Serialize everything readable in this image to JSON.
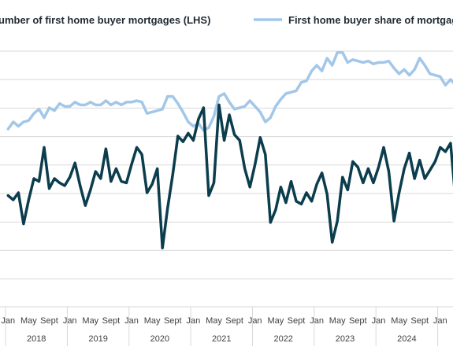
{
  "chart_data": {
    "type": "line",
    "title": "",
    "xlabel": "",
    "ylabel": "",
    "grid": true,
    "legend_position": "top",
    "x_tick_labels": [
      "Jan",
      "May",
      "Sept",
      "Jan",
      "May",
      "Sept",
      "Jan",
      "May",
      "Sept",
      "Jan",
      "May",
      "Sept",
      "Jan",
      "May",
      "Sept",
      "Jan",
      "May",
      "Sept",
      "Jan",
      "May",
      "Sept",
      "Jan"
    ],
    "years": [
      "2018",
      "2019",
      "2020",
      "2021",
      "2022",
      "2023",
      "2024"
    ],
    "series": [
      {
        "name": "Number of first home buyer mortgages (LHS)",
        "legend_visible_text": "umber of first home buyer mortgages (LHS)",
        "color": "#0b3d4d",
        "axis": "left",
        "values": [
          -0.02,
          -0.05,
          0.0,
          -0.22,
          -0.05,
          0.1,
          0.08,
          0.32,
          0.03,
          0.1,
          0.07,
          0.05,
          0.11,
          0.21,
          0.05,
          -0.09,
          0.02,
          0.15,
          0.1,
          0.31,
          0.08,
          0.17,
          0.08,
          0.07,
          0.2,
          0.32,
          0.27,
          0.0,
          0.06,
          0.17,
          -0.39,
          -0.11,
          0.13,
          0.4,
          0.36,
          0.42,
          0.37,
          0.52,
          0.6,
          -0.02,
          0.07,
          0.62,
          0.37,
          0.55,
          0.41,
          0.37,
          0.17,
          0.04,
          0.2,
          0.39,
          0.27,
          -0.21,
          -0.12,
          0.04,
          -0.07,
          0.08,
          -0.06,
          -0.08,
          0.0,
          -0.06,
          0.06,
          0.14,
          -0.01,
          -0.35,
          -0.2,
          0.11,
          0.02,
          0.22,
          0.18,
          0.07,
          0.17,
          0.07,
          0.18,
          0.32,
          0.15,
          -0.2,
          0.0,
          0.17,
          0.28,
          0.1,
          0.23,
          0.1,
          0.16,
          0.22,
          0.32,
          0.29,
          0.35,
          -0.06,
          0.0
        ]
      },
      {
        "name": "First home buyer share of mortgages",
        "legend_visible_text": "First home buyer share of mortgag",
        "color": "#a3c7e8",
        "axis": "right",
        "values": [
          0.45,
          0.5,
          0.47,
          0.5,
          0.51,
          0.56,
          0.59,
          0.53,
          0.6,
          0.58,
          0.63,
          0.61,
          0.61,
          0.64,
          0.62,
          0.62,
          0.64,
          0.62,
          0.62,
          0.65,
          0.62,
          0.64,
          0.62,
          0.64,
          0.64,
          0.65,
          0.64,
          0.56,
          0.57,
          0.58,
          0.59,
          0.68,
          0.68,
          0.63,
          0.57,
          0.5,
          0.47,
          0.49,
          0.44,
          0.46,
          0.54,
          0.68,
          0.7,
          0.64,
          0.59,
          0.6,
          0.61,
          0.65,
          0.61,
          0.57,
          0.5,
          0.53,
          0.61,
          0.66,
          0.7,
          0.71,
          0.72,
          0.78,
          0.79,
          0.86,
          0.9,
          0.86,
          0.95,
          0.9,
          0.99,
          0.99,
          0.92,
          0.94,
          0.93,
          0.92,
          0.93,
          0.91,
          0.92,
          0.92,
          0.93,
          0.88,
          0.84,
          0.87,
          0.83,
          0.87,
          0.95,
          0.9,
          0.84,
          0.83,
          0.82,
          0.76,
          0.8,
          0.76,
          0.76
        ]
      }
    ]
  }
}
